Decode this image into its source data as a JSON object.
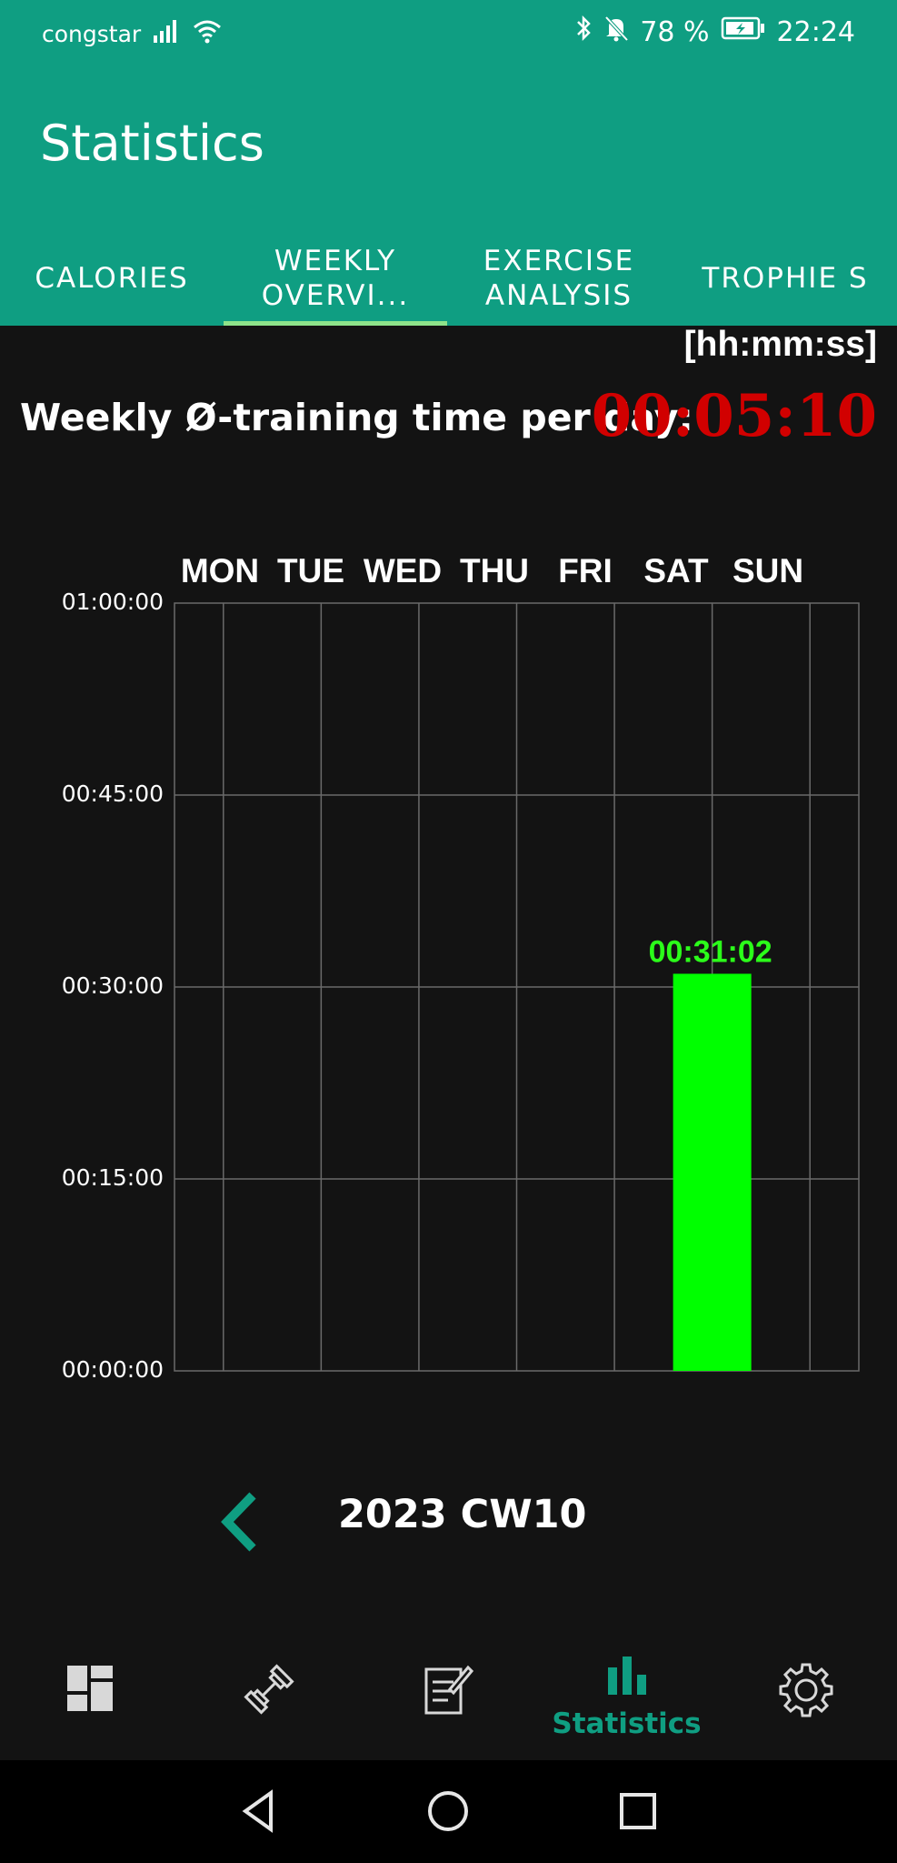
{
  "status": {
    "carrier": "congstar",
    "battery": "78 %",
    "time": "22:24"
  },
  "app": {
    "title": "Statistics"
  },
  "tabs": [
    {
      "label": "CALORIES"
    },
    {
      "label": "WEEKLY OVERVI...",
      "active": true
    },
    {
      "label": "EXERCISE ANALYSIS"
    },
    {
      "label": "TROPHIE S"
    }
  ],
  "unit": "[hh:mm:ss]",
  "summary": {
    "label": "Weekly Ø-training time per day:",
    "value": "00:05:10"
  },
  "chart_data": {
    "type": "bar",
    "categories": [
      "MON",
      "TUE",
      "WED",
      "THU",
      "FRI",
      "SAT",
      "SUN"
    ],
    "values": [
      0,
      0,
      0,
      0,
      0,
      1862,
      0
    ],
    "data_labels": [
      "",
      "",
      "",
      "",
      "",
      "00:31:02",
      ""
    ],
    "unit": "seconds",
    "ylim": [
      0,
      3600
    ],
    "yticks": [
      "00:00:00",
      "00:15:00",
      "00:30:00",
      "00:45:00",
      "01:00:00"
    ],
    "bar_color": "#00ff00",
    "grid": true
  },
  "week_nav": {
    "label": "2023 CW10"
  },
  "bottom_nav": {
    "active_label": "Statistics"
  },
  "colors": {
    "primary": "#0f9e82",
    "value_red": "#d10000",
    "bar_green": "#00ff00"
  }
}
